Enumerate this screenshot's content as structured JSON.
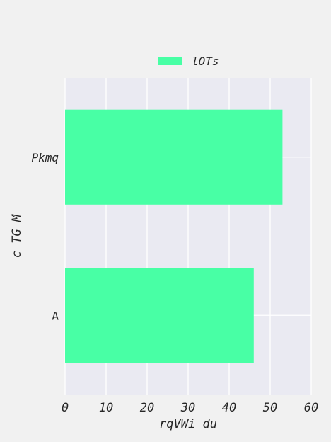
{
  "chart_data": {
    "type": "bar",
    "orientation": "horizontal",
    "categories": [
      "Pkmq",
      "A"
    ],
    "category_label_style": [
      "italic",
      "normal"
    ],
    "series": [
      {
        "name": "lOTs",
        "values": [
          53,
          46
        ],
        "color": "#48ffa5"
      }
    ],
    "xlabel": "rqVWi du",
    "ylabel": "c TG M",
    "xlim": [
      0,
      60
    ],
    "xticks": [
      0,
      10,
      20,
      30,
      40,
      50,
      60
    ],
    "grid": true,
    "legend_position": "top-center",
    "plot_background": "#eaeaf2",
    "page_background": "#f1f1f1"
  }
}
